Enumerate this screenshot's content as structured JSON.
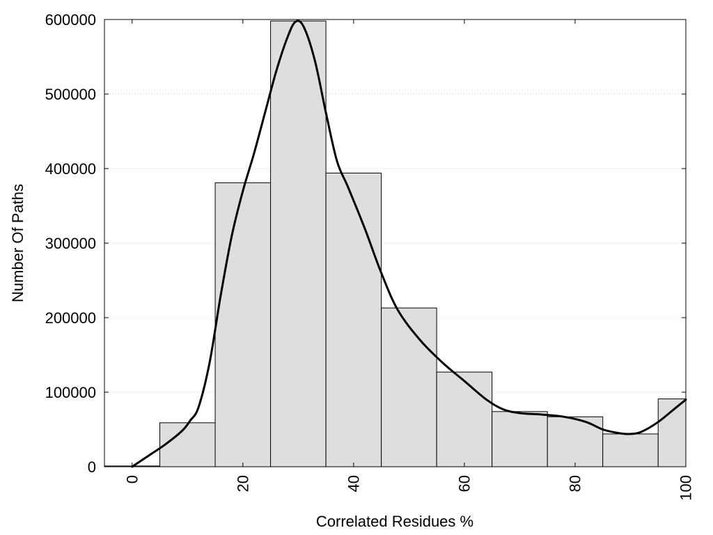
{
  "chart_data": {
    "type": "bar",
    "xlabel": "Correlated Residues %",
    "ylabel": "Number Of Paths",
    "xlim": [
      -5,
      100
    ],
    "ylim": [
      0,
      600000
    ],
    "grid": true,
    "colors": {
      "bar_fill": "#dedede",
      "bar_stroke": "#000000",
      "line": "#000000",
      "grid": "#c8c8c8"
    },
    "x_ticks": [
      {
        "value": 0,
        "label": "0"
      },
      {
        "value": 20,
        "label": "20"
      },
      {
        "value": 40,
        "label": "40"
      },
      {
        "value": 60,
        "label": "60"
      },
      {
        "value": 80,
        "label": "80"
      },
      {
        "value": 100,
        "label": "100"
      }
    ],
    "y_ticks": [
      {
        "value": 0,
        "label": "0"
      },
      {
        "value": 100000,
        "label": "100000"
      },
      {
        "value": 200000,
        "label": "200000"
      },
      {
        "value": 300000,
        "label": "300000"
      },
      {
        "value": 400000,
        "label": "400000"
      },
      {
        "value": 500000,
        "label": "500000"
      },
      {
        "value": 600000,
        "label": "600000"
      }
    ],
    "bins": [
      {
        "start": -5,
        "end": 5,
        "value": 1000
      },
      {
        "start": 5,
        "end": 15,
        "value": 59000
      },
      {
        "start": 15,
        "end": 25,
        "value": 381000
      },
      {
        "start": 25,
        "end": 35,
        "value": 598000
      },
      {
        "start": 35,
        "end": 45,
        "value": 394000
      },
      {
        "start": 45,
        "end": 55,
        "value": 213000
      },
      {
        "start": 55,
        "end": 65,
        "value": 127000
      },
      {
        "start": 65,
        "end": 75,
        "value": 74000
      },
      {
        "start": 75,
        "end": 85,
        "value": 67000
      },
      {
        "start": 85,
        "end": 95,
        "value": 44000
      },
      {
        "start": 95,
        "end": 100,
        "value": 91000
      }
    ],
    "density_curve": {
      "x": [
        0,
        3,
        6,
        9,
        10.5,
        12,
        14,
        16,
        18,
        20,
        22,
        24,
        26,
        28,
        29.5,
        31,
        33,
        35,
        37,
        39,
        42,
        45,
        48,
        52,
        56,
        60,
        64,
        67,
        70,
        74,
        78,
        82,
        85,
        88,
        90,
        92,
        95,
        98,
        100
      ],
      "y": [
        0,
        15000,
        30000,
        48000,
        62000,
        80000,
        140000,
        230000,
        310000,
        370000,
        420000,
        475000,
        530000,
        575000,
        597000,
        590000,
        545000,
        475000,
        410000,
        375000,
        320000,
        260000,
        210000,
        170000,
        140000,
        115000,
        90000,
        77000,
        72000,
        70000,
        67000,
        60000,
        50000,
        45000,
        44000,
        47000,
        60000,
        78000,
        90000
      ]
    }
  }
}
